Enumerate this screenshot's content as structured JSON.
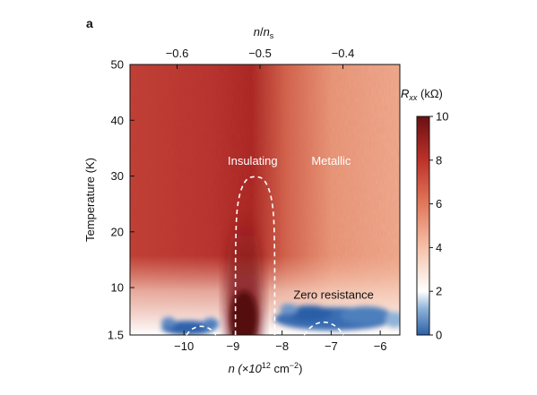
{
  "panel_label": "a",
  "chart_data": {
    "type": "heatmap",
    "x": {
      "label": "n (×10¹² cm⁻²)",
      "label_parts": {
        "base": "n (×10",
        "sup1": "12",
        "mid": " cm",
        "sup2": "−2",
        "end": ")"
      },
      "range": [
        -11.1,
        -5.6
      ],
      "ticks": [
        -10,
        -9,
        -8,
        -7,
        -6
      ],
      "tick_labels": [
        "−10",
        "−9",
        "−8",
        "−7",
        "−6"
      ]
    },
    "x_top": {
      "label": "n/ns",
      "label_parts": {
        "n": "n",
        "slash": "/",
        "ns": "n",
        "sub": "s"
      },
      "ticks": [
        -0.6,
        -0.5,
        -0.4
      ],
      "tick_labels": [
        "−0.6",
        "−0.5",
        "−0.4"
      ]
    },
    "y": {
      "label": "Temperature (K)",
      "range": [
        1.5,
        50
      ],
      "ticks": [
        1.5,
        10,
        20,
        30,
        40,
        50
      ],
      "tick_labels": [
        "1.5",
        "10",
        "20",
        "30",
        "40",
        "50"
      ]
    },
    "colorbar": {
      "label": "Rxx (kΩ)",
      "label_parts": {
        "R": "R",
        "sub": "xx",
        "unit": " (kΩ)"
      },
      "range": [
        0,
        10
      ],
      "ticks": [
        0,
        2,
        4,
        6,
        8,
        10
      ],
      "tick_labels": [
        "0",
        "2",
        "4",
        "6",
        "8",
        "10"
      ],
      "colors": [
        "#2b5fa8",
        "#ffffff",
        "#f1a787",
        "#c23b2f",
        "#6b0f13"
      ]
    },
    "annotations": [
      {
        "text": "Insulating",
        "x": -8.6,
        "y": 32,
        "color": "#ffffff"
      },
      {
        "text": "Metallic",
        "x": -7.0,
        "y": 32,
        "color": "#ffffff"
      },
      {
        "text": "Zero resistance",
        "x": -6.95,
        "y": 8,
        "color": "#111111"
      }
    ],
    "dashed_boundaries": [
      {
        "name": "insulating-dome",
        "points": [
          [
            -8.95,
            1.5
          ],
          [
            -8.95,
            20
          ],
          [
            -8.9,
            26
          ],
          [
            -8.75,
            29.5
          ],
          [
            -8.55,
            30
          ],
          [
            -8.35,
            29.5
          ],
          [
            -8.2,
            26
          ],
          [
            -8.15,
            20
          ],
          [
            -8.15,
            1.5
          ]
        ]
      },
      {
        "name": "sc-dome-left",
        "points": [
          [
            -9.95,
            1.5
          ],
          [
            -9.85,
            2.6
          ],
          [
            -9.65,
            3.2
          ],
          [
            -9.45,
            2.6
          ],
          [
            -9.35,
            1.5
          ]
        ]
      },
      {
        "name": "sc-dome-right",
        "points": [
          [
            -7.55,
            1.5
          ],
          [
            -7.4,
            3.2
          ],
          [
            -7.15,
            4.0
          ],
          [
            -6.9,
            3.2
          ],
          [
            -6.75,
            1.5
          ]
        ]
      }
    ]
  }
}
